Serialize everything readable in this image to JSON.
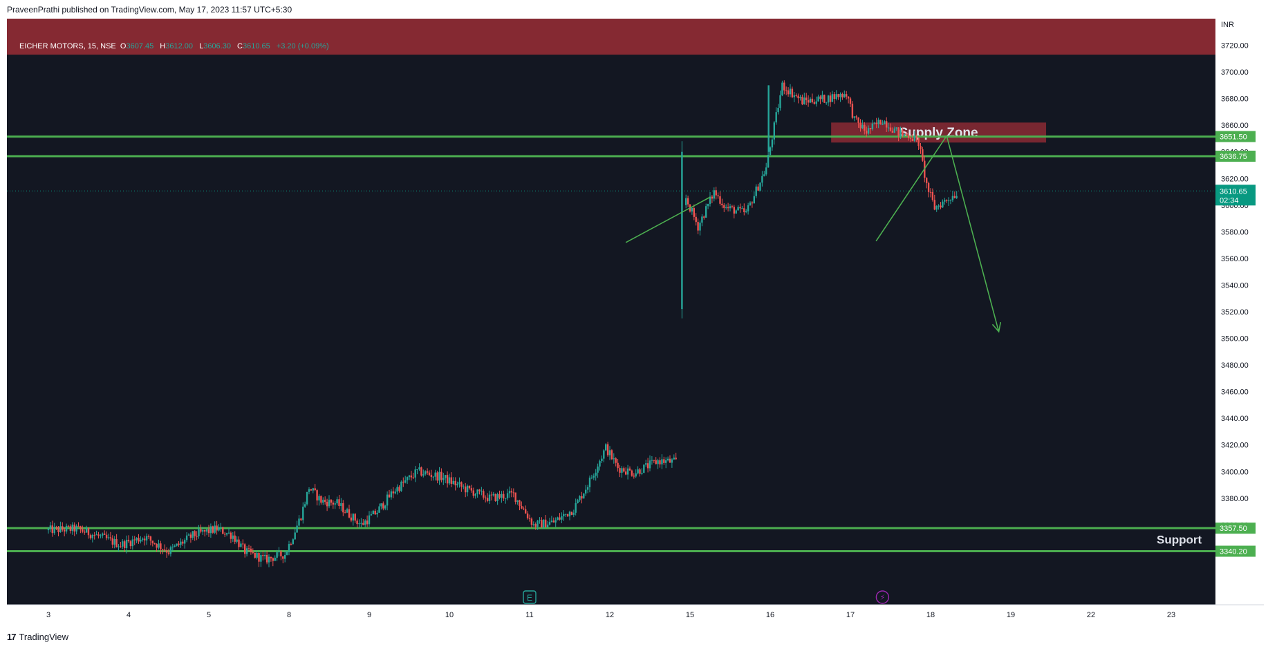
{
  "header": {
    "publish_line": "PraveenPrathi published on TradingView.com, May 17, 2023 11:57 UTC+5:30"
  },
  "footer": {
    "brand": "TradingView",
    "logo_glyph": "17"
  },
  "legend": {
    "symbol": "EICHER MOTORS, 15, NSE",
    "o_label": "O",
    "o_value": "3607.45",
    "h_label": "H",
    "h_value": "3612.00",
    "l_label": "L",
    "l_value": "3606.30",
    "c_label": "C",
    "c_value": "3610.65",
    "change": "+3.20 (+0.09%)"
  },
  "colors": {
    "background": "#131722",
    "up": "#26a69a",
    "down": "#ef5350",
    "level_line": "#4caf50",
    "zone_fill": "#8b2a34",
    "arrow": "#4caf50",
    "axis_text": "#d1d4dc",
    "price_tag": "#089981"
  },
  "chart_data": {
    "type": "candlestick",
    "currency": "INR",
    "ylim": [
      3300,
      3740
    ],
    "x_tick_labels": [
      "3",
      "4",
      "5",
      "8",
      "9",
      "10",
      "11",
      "12",
      "15",
      "16",
      "17",
      "18",
      "19",
      "22",
      "23"
    ],
    "y_tick_labels": [
      "3720.00",
      "3700.00",
      "3680.00",
      "3660.00",
      "3640.00",
      "3620.00",
      "3600.00",
      "3580.00",
      "3560.00",
      "3540.00",
      "3520.00",
      "3500.00",
      "3480.00",
      "3460.00",
      "3440.00",
      "3420.00",
      "3400.00",
      "3380.00",
      "3360.00",
      "3340.00"
    ],
    "last_price": {
      "value": 3610.65,
      "label": "3610.65",
      "countdown": "02:34"
    },
    "levels": [
      {
        "value": 3651.5,
        "label": "3651.50"
      },
      {
        "value": 3636.75,
        "label": "3636.75"
      },
      {
        "value": 3357.5,
        "label": "3357.50"
      },
      {
        "value": 3340.2,
        "label": "3340.20"
      }
    ],
    "zones": [
      {
        "label": "",
        "from_x": 0,
        "to_x": 15.1,
        "top": 3745,
        "bottom": 3713
      },
      {
        "label": "Supply Zone",
        "from_x": 9.76,
        "to_x": 12.44,
        "top": 3662,
        "bottom": 3647
      }
    ],
    "annotations": [
      {
        "text": "Support",
        "x": 14.1,
        "y": 3346
      }
    ],
    "trendlines": [
      {
        "from": [
          7.2,
          3572
        ],
        "to": [
          8.25,
          3606
        ]
      }
    ],
    "arrow_path": [
      [
        10.32,
        3573
      ],
      [
        11.2,
        3652
      ],
      [
        11.85,
        3505
      ]
    ],
    "event_markers": [
      {
        "kind": "earnings",
        "glyph": "E",
        "x": 6.0
      },
      {
        "kind": "dividend",
        "glyph": "⚡",
        "x": 10.4
      }
    ],
    "price_anchors": [
      [
        0,
        3356
      ],
      [
        0.35,
        3357
      ],
      [
        0.6,
        3352
      ],
      [
        0.9,
        3345
      ],
      [
        1.2,
        3351
      ],
      [
        1.5,
        3340
      ],
      [
        1.8,
        3352
      ],
      [
        2.1,
        3357
      ],
      [
        2.3,
        3352
      ],
      [
        2.45,
        3340
      ],
      [
        2.7,
        3334
      ],
      [
        2.95,
        3338
      ],
      [
        3.05,
        3352
      ],
      [
        3.15,
        3367
      ],
      [
        3.25,
        3388
      ],
      [
        3.4,
        3378
      ],
      [
        3.6,
        3376
      ],
      [
        3.9,
        3360
      ],
      [
        4.1,
        3370
      ],
      [
        4.3,
        3385
      ],
      [
        4.6,
        3400
      ],
      [
        4.9,
        3396
      ],
      [
        5.2,
        3387
      ],
      [
        5.5,
        3380
      ],
      [
        5.8,
        3383
      ],
      [
        6.05,
        3360
      ],
      [
        6.3,
        3362
      ],
      [
        6.55,
        3372
      ],
      [
        6.75,
        3393
      ],
      [
        6.95,
        3418
      ],
      [
        7.1,
        3403
      ],
      [
        7.3,
        3399
      ],
      [
        7.6,
        3408
      ],
      [
        7.85,
        3407
      ]
    ],
    "price_anchors_after_gap": [
      [
        7.95,
        3605
      ],
      [
        8.1,
        3584
      ],
      [
        8.3,
        3610
      ],
      [
        8.45,
        3598
      ],
      [
        8.7,
        3594
      ],
      [
        8.95,
        3628
      ],
      [
        9.15,
        3690
      ],
      [
        9.4,
        3678
      ],
      [
        9.7,
        3680
      ],
      [
        9.95,
        3684
      ],
      [
        10.05,
        3664
      ],
      [
        10.2,
        3655
      ],
      [
        10.4,
        3664
      ],
      [
        10.6,
        3654
      ],
      [
        10.75,
        3652
      ],
      [
        10.85,
        3647
      ],
      [
        10.95,
        3615
      ],
      [
        11.05,
        3598
      ],
      [
        11.2,
        3604
      ],
      [
        11.35,
        3610
      ]
    ]
  }
}
